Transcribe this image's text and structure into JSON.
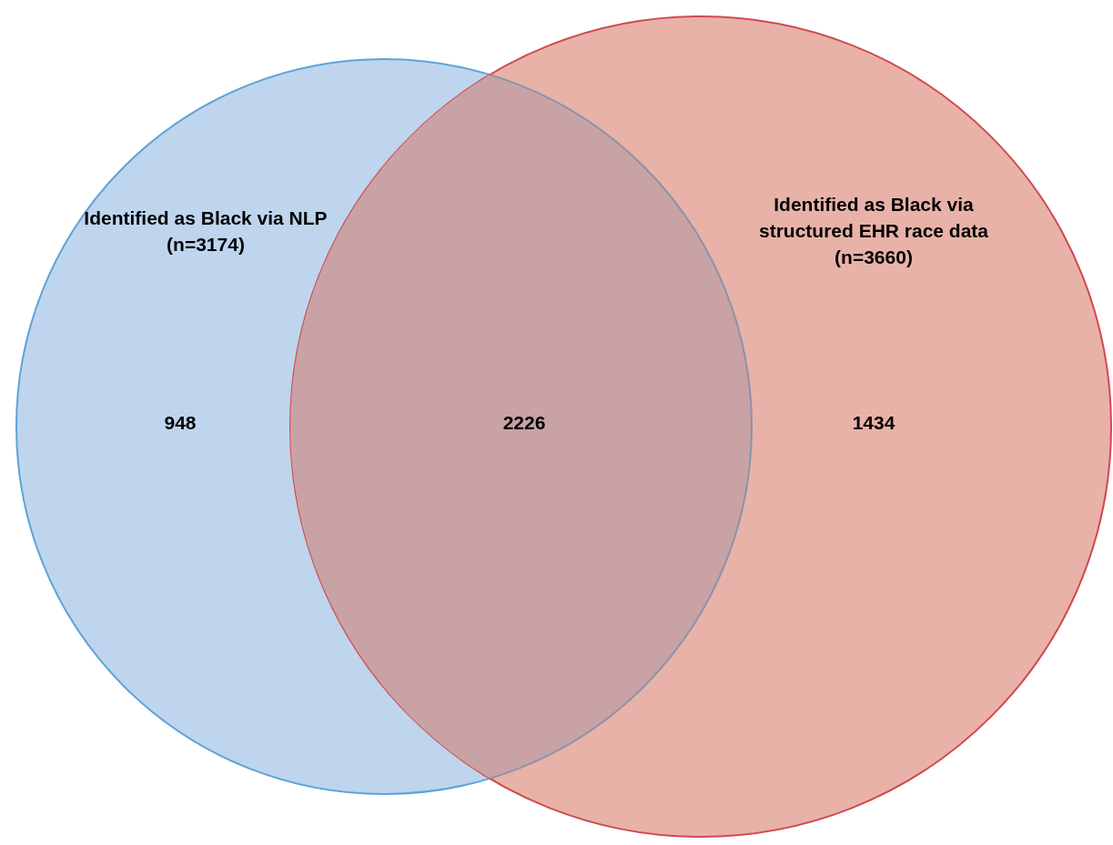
{
  "chart_data": {
    "type": "other",
    "categories": [
      null,
      null,
      null
    ],
    "values": [
      948,
      2226,
      1434
    ],
    "colors": [
      "#bed5ed",
      "#c9a2a5",
      "#e8b2a9"
    ],
    "data_labels": true,
    "annotations": [
      "Identified as Black via NLP\n(n=3174)",
      "Identified as Black via\nstructured EHR race data\n(n=3660)"
    ]
  }
}
